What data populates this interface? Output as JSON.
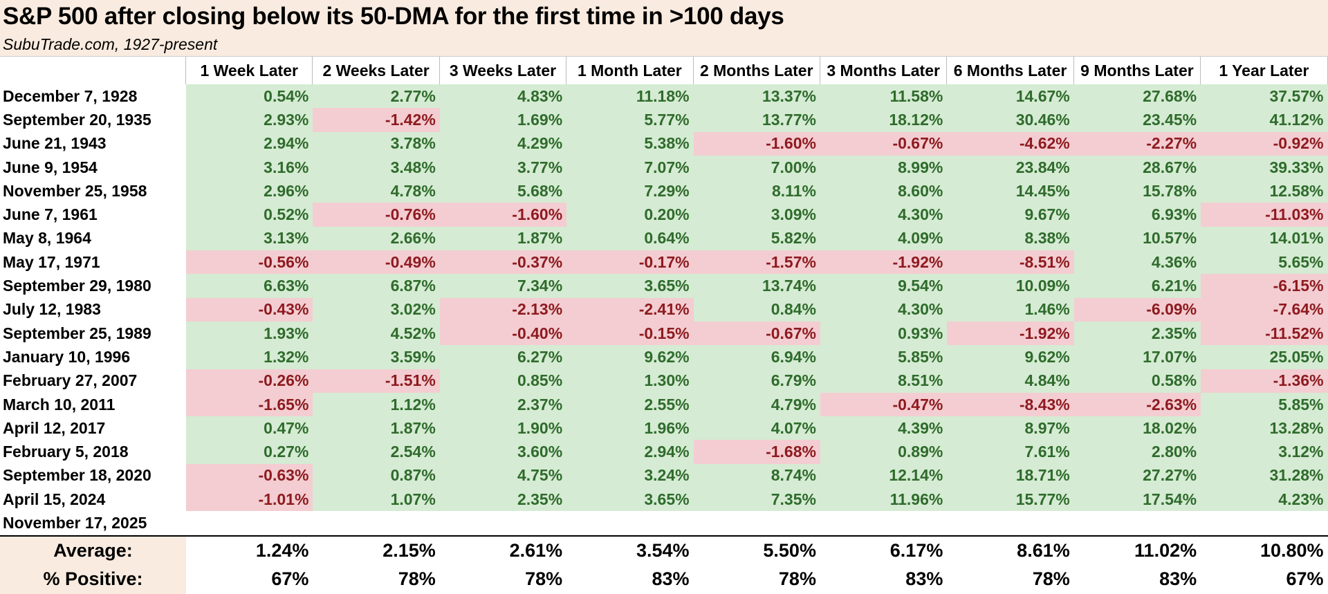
{
  "header": {
    "title": "S&P 500 after closing below its 50-DMA for the first time in >100 days",
    "subtitle": "SubuTrade.com, 1927-present"
  },
  "table": {
    "columns": [
      "1 Week Later",
      "2 Weeks Later",
      "3 Weeks Later",
      "1 Month Later",
      "2 Months Later",
      "3 Months Later",
      "6 Months Later",
      "9 Months Later",
      "1 Year Later"
    ],
    "rows": [
      [
        "December 7, 1928",
        "0.54%",
        "2.77%",
        "4.83%",
        "11.18%",
        "13.37%",
        "11.58%",
        "14.67%",
        "27.68%",
        "37.57%"
      ],
      [
        "September 20, 1935",
        "2.93%",
        "-1.42%",
        "1.69%",
        "5.77%",
        "13.77%",
        "18.12%",
        "30.46%",
        "23.45%",
        "41.12%"
      ],
      [
        "June 21, 1943",
        "2.94%",
        "3.78%",
        "4.29%",
        "5.38%",
        "-1.60%",
        "-0.67%",
        "-4.62%",
        "-2.27%",
        "-0.92%"
      ],
      [
        "June 9, 1954",
        "3.16%",
        "3.48%",
        "3.77%",
        "7.07%",
        "7.00%",
        "8.99%",
        "23.84%",
        "28.67%",
        "39.33%"
      ],
      [
        "November 25, 1958",
        "2.96%",
        "4.78%",
        "5.68%",
        "7.29%",
        "8.11%",
        "8.60%",
        "14.45%",
        "15.78%",
        "12.58%"
      ],
      [
        "June 7, 1961",
        "0.52%",
        "-0.76%",
        "-1.60%",
        "0.20%",
        "3.09%",
        "4.30%",
        "9.67%",
        "6.93%",
        "-11.03%"
      ],
      [
        "May 8, 1964",
        "3.13%",
        "2.66%",
        "1.87%",
        "0.64%",
        "5.82%",
        "4.09%",
        "8.38%",
        "10.57%",
        "14.01%"
      ],
      [
        "May 17, 1971",
        "-0.56%",
        "-0.49%",
        "-0.37%",
        "-0.17%",
        "-1.57%",
        "-1.92%",
        "-8.51%",
        "4.36%",
        "5.65%"
      ],
      [
        "September 29, 1980",
        "6.63%",
        "6.87%",
        "7.34%",
        "3.65%",
        "13.74%",
        "9.54%",
        "10.09%",
        "6.21%",
        "-6.15%"
      ],
      [
        "July 12, 1983",
        "-0.43%",
        "3.02%",
        "-2.13%",
        "-2.41%",
        "0.84%",
        "4.30%",
        "1.46%",
        "-6.09%",
        "-7.64%"
      ],
      [
        "September 25, 1989",
        "1.93%",
        "4.52%",
        "-0.40%",
        "-0.15%",
        "-0.67%",
        "0.93%",
        "-1.92%",
        "2.35%",
        "-11.52%"
      ],
      [
        "January 10, 1996",
        "1.32%",
        "3.59%",
        "6.27%",
        "9.62%",
        "6.94%",
        "5.85%",
        "9.62%",
        "17.07%",
        "25.05%"
      ],
      [
        "February 27, 2007",
        "-0.26%",
        "-1.51%",
        "0.85%",
        "1.30%",
        "6.79%",
        "8.51%",
        "4.84%",
        "0.58%",
        "-1.36%"
      ],
      [
        "March 10, 2011",
        "-1.65%",
        "1.12%",
        "2.37%",
        "2.55%",
        "4.79%",
        "-0.47%",
        "-8.43%",
        "-2.63%",
        "5.85%"
      ],
      [
        "April 12, 2017",
        "0.47%",
        "1.87%",
        "1.90%",
        "1.96%",
        "4.07%",
        "4.39%",
        "8.97%",
        "18.02%",
        "13.28%"
      ],
      [
        "February 5, 2018",
        "0.27%",
        "2.54%",
        "3.60%",
        "2.94%",
        "-1.68%",
        "0.89%",
        "7.61%",
        "2.80%",
        "3.12%"
      ],
      [
        "September 18, 2020",
        "-0.63%",
        "0.87%",
        "4.75%",
        "3.24%",
        "8.74%",
        "12.14%",
        "18.71%",
        "27.27%",
        "31.28%"
      ],
      [
        "April 15, 2024",
        "-1.01%",
        "1.07%",
        "2.35%",
        "3.65%",
        "7.35%",
        "11.96%",
        "15.77%",
        "17.54%",
        "4.23%"
      ],
      [
        "November 17, 2025"
      ]
    ],
    "summary": [
      [
        "Average:",
        "1.24%",
        "2.15%",
        "2.61%",
        "3.54%",
        "5.50%",
        "6.17%",
        "8.61%",
        "11.02%",
        "10.80%"
      ],
      [
        "% Positive:",
        "67%",
        "78%",
        "78%",
        "83%",
        "78%",
        "83%",
        "78%",
        "83%",
        "67%"
      ]
    ]
  }
}
